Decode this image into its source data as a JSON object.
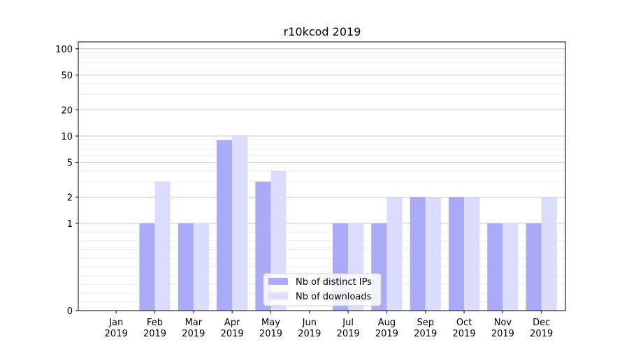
{
  "chart_data": {
    "type": "bar",
    "title": "r10kcod 2019",
    "categories": [
      "Jan\n2019",
      "Feb\n2019",
      "Mar\n2019",
      "Apr\n2019",
      "May\n2019",
      "Jun\n2019",
      "Jul\n2019",
      "Aug\n2019",
      "Sep\n2019",
      "Oct\n2019",
      "Nov\n2019",
      "Dec\n2019"
    ],
    "series": [
      {
        "name": "Nb of distinct IPs",
        "color": "#aaaaf8",
        "values": [
          0,
          1,
          1,
          9,
          3,
          0,
          1,
          1,
          2,
          2,
          1,
          1
        ]
      },
      {
        "name": "Nb of downloads",
        "color": "#dcdcfc",
        "values": [
          0,
          3,
          1,
          10,
          4,
          0,
          1,
          2,
          2,
          2,
          1,
          2
        ]
      }
    ],
    "yscale": "symlog",
    "ylim": [
      0,
      120
    ],
    "yticks": [
      0,
      1,
      2,
      5,
      10,
      20,
      50,
      100
    ],
    "grid": true,
    "legend_position": "lower-center"
  }
}
